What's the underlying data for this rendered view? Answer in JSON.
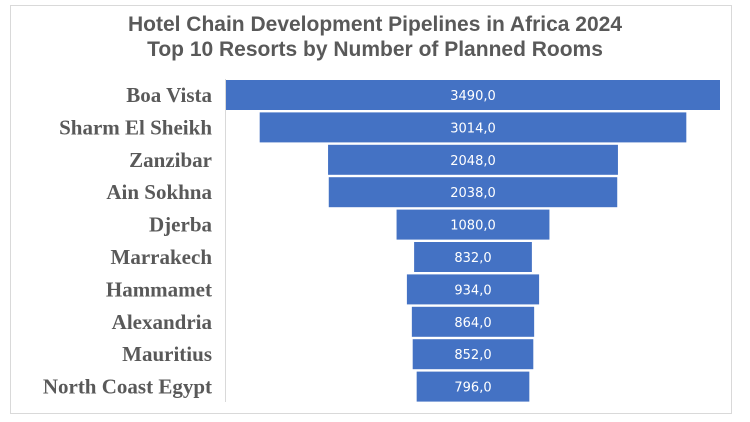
{
  "chart_data": {
    "type": "bar",
    "orientation": "horizontal-centered-funnel",
    "title": "Hotel Chain Development Pipelines in Africa 2024",
    "subtitle": "Top 10 Resorts by Number of Planned Rooms",
    "categories": [
      "Boa Vista",
      "Sharm El Sheikh",
      "Zanzibar",
      "Ain Sokhna",
      "Djerba",
      "Marrakech",
      "Hammamet",
      "Alexandria",
      "Mauritius",
      "North Coast Egypt"
    ],
    "values": [
      3490.0,
      3014.0,
      2048.0,
      2038.0,
      1080.0,
      832.0,
      934.0,
      864.0,
      852.0,
      796.0
    ],
    "data_labels": [
      "3490,0",
      "3014,0",
      "2048,0",
      "2038,0",
      "1080,0",
      "832,0",
      "934,0",
      "864,0",
      "852,0",
      "796,0"
    ],
    "xlabel": "",
    "ylabel": "",
    "xlim": [
      0,
      3490
    ],
    "grid": false,
    "legend": "none",
    "bar_color": "#4472c4",
    "label_color": "#595959",
    "data_label_color": "#ffffff"
  }
}
